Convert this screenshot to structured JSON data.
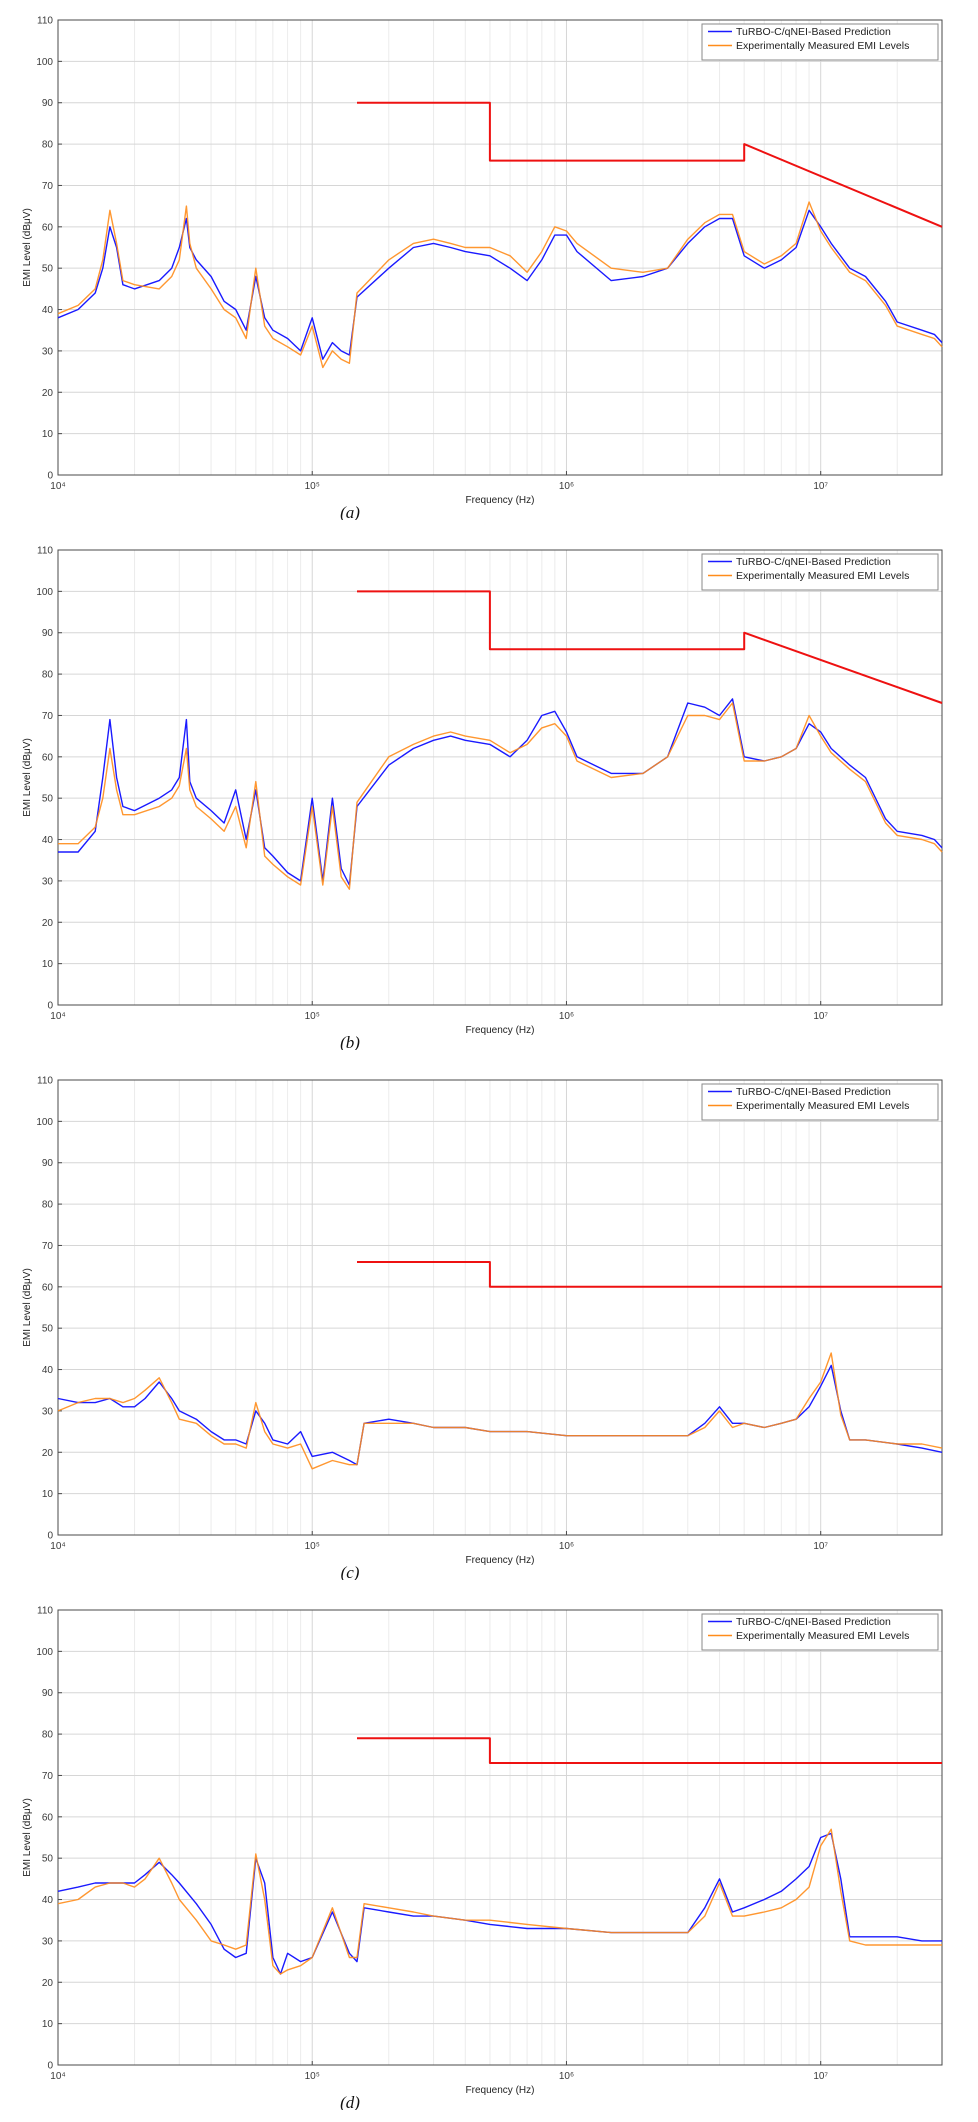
{
  "chart_data": [
    {
      "type": "line",
      "caption": "(a)",
      "xlabel": "Frequency (Hz)",
      "ylabel": "EMI Level (dBμV)",
      "x_scale": "log",
      "xlim": [
        10000,
        30000000
      ],
      "ylim": [
        0,
        110
      ],
      "x_tick_labels": [
        "10⁴",
        "10⁵",
        "10⁶",
        "10⁷"
      ],
      "y_ticks": [
        0,
        10,
        20,
        30,
        40,
        50,
        60,
        70,
        80,
        90,
        100,
        110
      ],
      "grid": true,
      "legend": "top-right",
      "x": [
        10000,
        12000,
        14000,
        15000,
        16000,
        17000,
        18000,
        20000,
        25000,
        28000,
        30000,
        32000,
        33000,
        35000,
        40000,
        45000,
        50000,
        55000,
        60000,
        65000,
        70000,
        80000,
        90000,
        100000,
        110000,
        120000,
        130000,
        140000,
        150000,
        200000,
        250000,
        300000,
        350000,
        400000,
        500000,
        600000,
        700000,
        800000,
        900000,
        1000000,
        1100000,
        1500000,
        2000000,
        2500000,
        3000000,
        3500000,
        4000000,
        4500000,
        5000000,
        6000000,
        7000000,
        8000000,
        9000000,
        10000000,
        11000000,
        13000000,
        15000000,
        18000000,
        20000000,
        25000000,
        28000000,
        30000000
      ],
      "series": [
        {
          "name": "TuRBO-C/qNEI-Based Prediction",
          "color": "#1a1aff",
          "values": [
            38,
            40,
            44,
            50,
            60,
            55,
            46,
            45,
            47,
            50,
            55,
            62,
            55,
            52,
            48,
            42,
            40,
            35,
            48,
            38,
            35,
            33,
            30,
            38,
            28,
            32,
            30,
            29,
            43,
            50,
            55,
            56,
            55,
            54,
            53,
            50,
            47,
            52,
            58,
            58,
            54,
            47,
            48,
            50,
            56,
            60,
            62,
            62,
            53,
            50,
            52,
            55,
            64,
            60,
            56,
            50,
            48,
            42,
            37,
            35,
            34,
            32
          ]
        },
        {
          "name": "Experimentally Measured EMI Levels",
          "color": "#ff8c1a",
          "values": [
            39,
            41,
            45,
            52,
            64,
            56,
            47,
            46,
            45,
            48,
            52,
            65,
            56,
            50,
            45,
            40,
            38,
            33,
            50,
            36,
            33,
            31,
            29,
            36,
            26,
            30,
            28,
            27,
            44,
            52,
            56,
            57,
            56,
            55,
            55,
            53,
            49,
            54,
            60,
            59,
            56,
            50,
            49,
            50,
            57,
            61,
            63,
            63,
            54,
            51,
            53,
            56,
            66,
            59,
            55,
            49,
            47,
            41,
            36,
            34,
            33,
            31
          ]
        },
        {
          "name": "",
          "color": "#ee1111",
          "x": [
            150000,
            500000,
            500000,
            5000000,
            5000000,
            30000000
          ],
          "values": [
            90,
            90,
            76,
            76,
            80,
            60
          ]
        }
      ]
    },
    {
      "type": "line",
      "caption": "(b)",
      "xlabel": "Frequency (Hz)",
      "ylabel": "EMI Level (dBμV)",
      "x_scale": "log",
      "xlim": [
        10000,
        30000000
      ],
      "ylim": [
        0,
        110
      ],
      "x_tick_labels": [
        "10⁴",
        "10⁵",
        "10⁶",
        "10⁷"
      ],
      "y_ticks": [
        0,
        10,
        20,
        30,
        40,
        50,
        60,
        70,
        80,
        90,
        100,
        110
      ],
      "grid": true,
      "legend": "top-right",
      "x": [
        10000,
        12000,
        14000,
        15000,
        16000,
        17000,
        18000,
        20000,
        25000,
        28000,
        30000,
        32000,
        33000,
        35000,
        40000,
        45000,
        50000,
        55000,
        60000,
        65000,
        70000,
        80000,
        90000,
        100000,
        110000,
        120000,
        130000,
        140000,
        150000,
        200000,
        250000,
        300000,
        350000,
        400000,
        500000,
        600000,
        700000,
        800000,
        900000,
        1000000,
        1100000,
        1500000,
        2000000,
        2500000,
        3000000,
        3500000,
        4000000,
        4500000,
        5000000,
        6000000,
        7000000,
        8000000,
        9000000,
        10000000,
        11000000,
        13000000,
        15000000,
        18000000,
        20000000,
        25000000,
        28000000,
        30000000
      ],
      "series": [
        {
          "name": "TuRBO-C/qNEI-Based Prediction",
          "color": "#1a1aff",
          "values": [
            37,
            37,
            42,
            55,
            69,
            55,
            48,
            47,
            50,
            52,
            55,
            69,
            54,
            50,
            47,
            44,
            52,
            40,
            52,
            38,
            36,
            32,
            30,
            50,
            30,
            50,
            33,
            29,
            48,
            58,
            62,
            64,
            65,
            64,
            63,
            60,
            64,
            70,
            71,
            66,
            60,
            56,
            56,
            60,
            73,
            72,
            70,
            74,
            60,
            59,
            60,
            62,
            68,
            66,
            62,
            58,
            55,
            45,
            42,
            41,
            40,
            38
          ]
        },
        {
          "name": "Experimentally Measured EMI Levels",
          "color": "#ff8c1a",
          "values": [
            39,
            39,
            43,
            50,
            62,
            52,
            46,
            46,
            48,
            50,
            53,
            62,
            52,
            48,
            45,
            42,
            48,
            38,
            54,
            36,
            34,
            31,
            29,
            48,
            29,
            48,
            31,
            28,
            49,
            60,
            63,
            65,
            66,
            65,
            64,
            61,
            63,
            67,
            68,
            65,
            59,
            55,
            56,
            60,
            70,
            70,
            69,
            73,
            59,
            59,
            60,
            62,
            70,
            65,
            61,
            57,
            54,
            44,
            41,
            40,
            39,
            37
          ]
        },
        {
          "name": "",
          "color": "#ee1111",
          "x": [
            150000,
            500000,
            500000,
            5000000,
            5000000,
            30000000
          ],
          "values": [
            100,
            100,
            86,
            86,
            90,
            73
          ]
        }
      ]
    },
    {
      "type": "line",
      "caption": "(c)",
      "xlabel": "Frequency (Hz)",
      "ylabel": "EMI Level (dBμV)",
      "x_scale": "log",
      "xlim": [
        10000,
        30000000
      ],
      "ylim": [
        0,
        110
      ],
      "x_tick_labels": [
        "10⁴",
        "10⁵",
        "10⁶",
        "10⁷"
      ],
      "y_ticks": [
        0,
        10,
        20,
        30,
        40,
        50,
        60,
        70,
        80,
        90,
        100,
        110
      ],
      "grid": true,
      "legend": "top-right",
      "x": [
        10000,
        12000,
        14000,
        16000,
        18000,
        20000,
        22000,
        25000,
        28000,
        30000,
        35000,
        40000,
        45000,
        50000,
        55000,
        60000,
        65000,
        70000,
        80000,
        90000,
        100000,
        120000,
        140000,
        150000,
        160000,
        200000,
        250000,
        300000,
        400000,
        500000,
        700000,
        1000000,
        1500000,
        2000000,
        3000000,
        3500000,
        4000000,
        4500000,
        5000000,
        6000000,
        7000000,
        8000000,
        9000000,
        10000000,
        11000000,
        12000000,
        13000000,
        15000000,
        20000000,
        25000000,
        30000000
      ],
      "series": [
        {
          "name": "TuRBO-C/qNEI-Based Prediction",
          "color": "#1a1aff",
          "values": [
            33,
            32,
            32,
            33,
            31,
            31,
            33,
            37,
            33,
            30,
            28,
            25,
            23,
            23,
            22,
            30,
            27,
            23,
            22,
            25,
            19,
            20,
            18,
            17,
            27,
            28,
            27,
            26,
            26,
            25,
            25,
            24,
            24,
            24,
            24,
            27,
            31,
            27,
            27,
            26,
            27,
            28,
            31,
            36,
            41,
            30,
            23,
            23,
            22,
            21,
            20
          ]
        },
        {
          "name": "Experimentally Measured EMI Levels",
          "color": "#ff8c1a",
          "values": [
            30,
            32,
            33,
            33,
            32,
            33,
            35,
            38,
            32,
            28,
            27,
            24,
            22,
            22,
            21,
            32,
            25,
            22,
            21,
            22,
            16,
            18,
            17,
            17,
            27,
            27,
            27,
            26,
            26,
            25,
            25,
            24,
            24,
            24,
            24,
            26,
            30,
            26,
            27,
            26,
            27,
            28,
            33,
            37,
            44,
            29,
            23,
            23,
            22,
            22,
            21
          ]
        },
        {
          "name": "",
          "color": "#ee1111",
          "x": [
            150000,
            500000,
            500000,
            30000000
          ],
          "values": [
            66,
            66,
            60,
            60
          ]
        }
      ]
    },
    {
      "type": "line",
      "caption": "(d)",
      "xlabel": "Frequency (Hz)",
      "ylabel": "EMI Level (dBμV)",
      "x_scale": "log",
      "xlim": [
        10000,
        30000000
      ],
      "ylim": [
        0,
        110
      ],
      "x_tick_labels": [
        "10⁴",
        "10⁵",
        "10⁶",
        "10⁷"
      ],
      "y_ticks": [
        0,
        10,
        20,
        30,
        40,
        50,
        60,
        70,
        80,
        90,
        100,
        110
      ],
      "grid": true,
      "legend": "top-right",
      "x": [
        10000,
        12000,
        14000,
        16000,
        18000,
        20000,
        22000,
        25000,
        28000,
        30000,
        35000,
        40000,
        45000,
        50000,
        55000,
        60000,
        65000,
        70000,
        75000,
        80000,
        90000,
        100000,
        120000,
        140000,
        150000,
        160000,
        200000,
        250000,
        300000,
        400000,
        500000,
        700000,
        1000000,
        1500000,
        2000000,
        3000000,
        3500000,
        4000000,
        4500000,
        5000000,
        6000000,
        7000000,
        8000000,
        9000000,
        10000000,
        11000000,
        12000000,
        13000000,
        15000000,
        20000000,
        25000000,
        30000000
      ],
      "series": [
        {
          "name": "TuRBO-C/qNEI-Based Prediction",
          "color": "#1a1aff",
          "values": [
            42,
            43,
            44,
            44,
            44,
            44,
            46,
            49,
            46,
            44,
            39,
            34,
            28,
            26,
            27,
            50,
            44,
            26,
            22,
            27,
            25,
            26,
            37,
            27,
            25,
            38,
            37,
            36,
            36,
            35,
            34,
            33,
            33,
            32,
            32,
            32,
            38,
            45,
            37,
            38,
            40,
            42,
            45,
            48,
            55,
            56,
            45,
            31,
            31,
            31,
            30,
            30
          ]
        },
        {
          "name": "Experimentally Measured EMI Levels",
          "color": "#ff8c1a",
          "values": [
            39,
            40,
            43,
            44,
            44,
            43,
            45,
            50,
            44,
            40,
            35,
            30,
            29,
            28,
            29,
            51,
            40,
            24,
            22,
            23,
            24,
            26,
            38,
            26,
            26,
            39,
            38,
            37,
            36,
            35,
            35,
            34,
            33,
            32,
            32,
            32,
            36,
            44,
            36,
            36,
            37,
            38,
            40,
            43,
            53,
            57,
            42,
            30,
            29,
            29,
            29,
            29
          ]
        },
        {
          "name": "",
          "color": "#ee1111",
          "x": [
            150000,
            500000,
            500000,
            30000000
          ],
          "values": [
            79,
            79,
            73,
            73
          ]
        }
      ]
    }
  ]
}
